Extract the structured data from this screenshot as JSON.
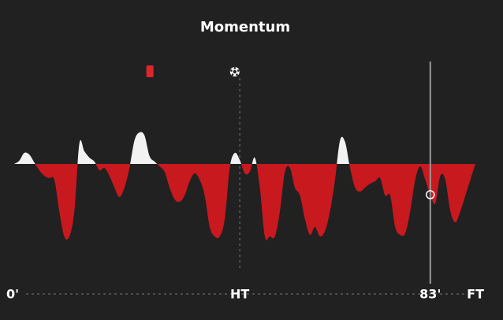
{
  "chart_data": {
    "type": "momentum",
    "title": "Momentum",
    "x": [
      0,
      1,
      2,
      3,
      4,
      5,
      6,
      7,
      8,
      9,
      10,
      11,
      12,
      13,
      14,
      15,
      16,
      17,
      18,
      19,
      20,
      21,
      22,
      23,
      24,
      25,
      26,
      27,
      28,
      29,
      30,
      31,
      32,
      33,
      34,
      35,
      36,
      37,
      38,
      39,
      40,
      41,
      42,
      43,
      44,
      45,
      46,
      47,
      48,
      49,
      50,
      51,
      52,
      53,
      54,
      55,
      56,
      57,
      58,
      59,
      60,
      61,
      62,
      63,
      64,
      65,
      66,
      67,
      68,
      69,
      70,
      71,
      72,
      73,
      74,
      75,
      76,
      77,
      78,
      79,
      80,
      81,
      82,
      83,
      84,
      85,
      86,
      87,
      88,
      89,
      90,
      91,
      92
    ],
    "values": [
      0,
      4,
      14,
      12,
      2,
      -8,
      -15,
      -18,
      -20,
      -60,
      -92,
      -92,
      -60,
      26,
      16,
      8,
      3,
      -8,
      -5,
      -15,
      -30,
      -42,
      -30,
      -5,
      30,
      40,
      36,
      10,
      3,
      -3,
      -10,
      -30,
      -45,
      -48,
      -40,
      -22,
      -12,
      -20,
      -40,
      -80,
      -92,
      -92,
      -70,
      -5,
      14,
      5,
      -12,
      -10,
      8,
      -30,
      -92,
      -92,
      -92,
      -60,
      -10,
      -5,
      -30,
      -40,
      -70,
      -90,
      -80,
      -92,
      -85,
      -60,
      -20,
      30,
      28,
      -5,
      -30,
      -35,
      -30,
      -25,
      -22,
      -18,
      -40,
      -40,
      -80,
      -90,
      -88,
      -60,
      -20,
      -3,
      -20,
      -39,
      -50,
      -15,
      -20,
      -60,
      -74,
      -60,
      -40,
      -20,
      0
    ],
    "positive_color": "#f2f2f2",
    "negative_color": "#c8191f",
    "xlim": [
      0,
      92
    ],
    "ylim": [
      -100,
      100
    ],
    "xticks": [
      {
        "value": 0,
        "label": "0'"
      },
      {
        "value": 45,
        "label": "HT"
      },
      {
        "value": 83,
        "label": "83'"
      },
      {
        "value": 92,
        "label": "FT"
      }
    ],
    "current_index": 83,
    "events": [
      {
        "type": "red-card",
        "minute": 27
      },
      {
        "type": "goal",
        "minute": 44
      }
    ]
  }
}
